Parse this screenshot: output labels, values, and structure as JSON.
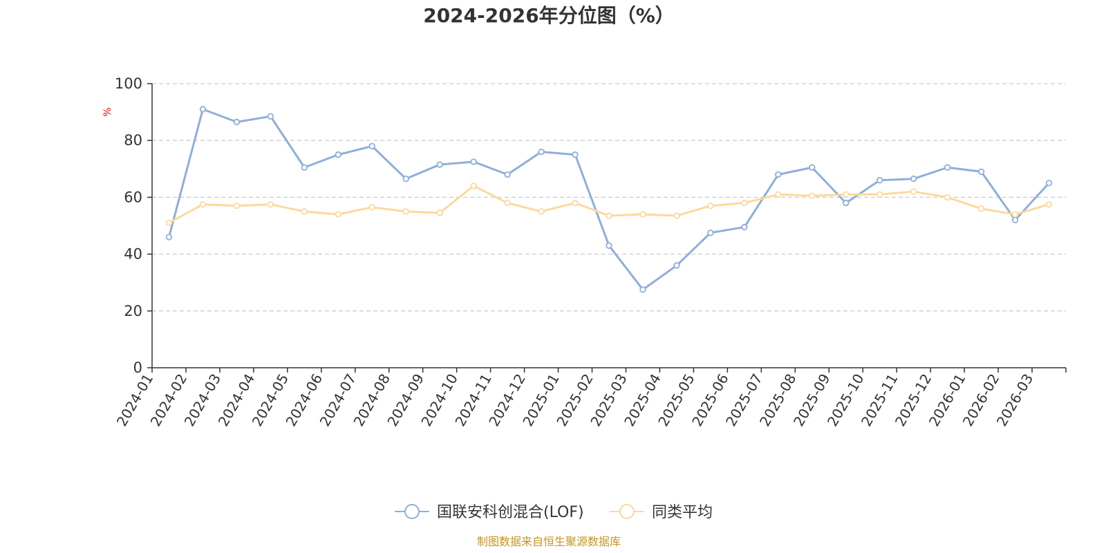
{
  "chart_data": {
    "type": "line",
    "title": "2024-2026年分位图（%）",
    "ylabel": "%",
    "xlabel": "",
    "ylim": [
      0,
      100
    ],
    "yticks": [
      0,
      20,
      40,
      60,
      80,
      100
    ],
    "grid": true,
    "legend_position": "bottom-center",
    "categories": [
      "2024-01",
      "2024-02",
      "2024-03",
      "2024-04",
      "2024-05",
      "2024-06",
      "2024-07",
      "2024-08",
      "2024-09",
      "2024-10",
      "2024-11",
      "2024-12",
      "2025-01",
      "2025-02",
      "2025-03",
      "2025-04",
      "2025-05",
      "2025-06",
      "2025-07",
      "2025-08",
      "2025-09",
      "2025-10",
      "2025-11",
      "2025-12",
      "2026-01",
      "2026-02",
      "2026-03"
    ],
    "series": [
      {
        "name": "国联安科创混合(LOF)",
        "color": "#8eaedb",
        "values": [
          46,
          91,
          86.5,
          88.5,
          70.5,
          75,
          78,
          66.5,
          71.5,
          72.5,
          68,
          76,
          75,
          43,
          27.5,
          36,
          47.5,
          49.5,
          68,
          70.5,
          58,
          66,
          66.5,
          70.5,
          69,
          52,
          65
        ]
      },
      {
        "name": "同类平均",
        "color": "#fcd99c",
        "values": [
          51,
          57.5,
          57,
          57.5,
          55,
          54,
          56.5,
          55,
          54.5,
          64,
          58,
          55,
          58,
          53.5,
          54,
          53.5,
          57,
          58,
          61,
          60.5,
          61,
          61,
          62,
          60,
          56,
          54,
          57.5
        ]
      }
    ]
  },
  "colors": {
    "grid": "#cccccc",
    "axis": "#333333",
    "unit": "#ff0000",
    "source": "#c8941f"
  },
  "footer": {
    "source": "制图数据来自恒生聚源数据库"
  }
}
